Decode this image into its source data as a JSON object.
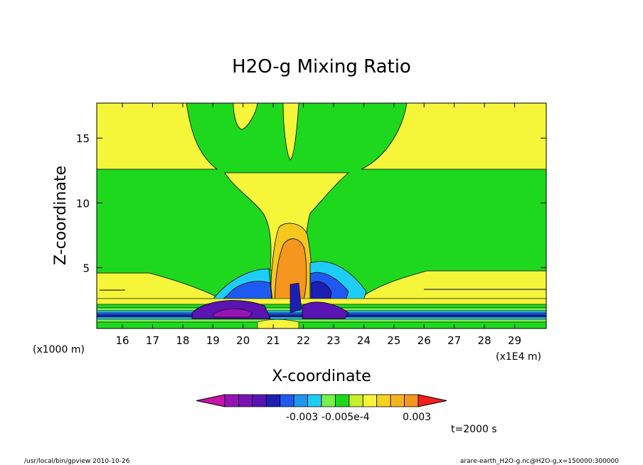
{
  "chart_data": {
    "type": "heatmap",
    "title": "H2O-g Mixing Ratio",
    "xlabel": "X-coordinate",
    "ylabel": "Z-coordinate",
    "x_multiplier_label": "(x1E4 m)",
    "y_multiplier_label": "(x1000 m)",
    "xlim": [
      15.15,
      30.05
    ],
    "ylim": [
      0.3,
      17.7
    ],
    "x_ticks": [
      16,
      17,
      18,
      19,
      20,
      21,
      22,
      23,
      24,
      25,
      26,
      27,
      28,
      29
    ],
    "y_ticks": [
      5,
      10,
      15
    ],
    "grid": false,
    "colors": {
      "yellow": "#f5f53a",
      "green": "#1ed81e",
      "lightgreen": "#78f04b",
      "cyan": "#1ecdf5",
      "blue": "#1e5af0",
      "darkblue": "#1e1eb4",
      "indigo": "#5a14b4",
      "purple": "#9614b4",
      "magenta": "#c814aa",
      "orange": "#f5961e",
      "red": "#f51e1e",
      "lightorange": "#f5c81e"
    },
    "colorbar": {
      "colors": [
        "#c814aa",
        "#9614b4",
        "#7814b4",
        "#5a14b4",
        "#1e1eb4",
        "#1e5af0",
        "#1e96f0",
        "#1ecdf5",
        "#78f04b",
        "#1ed81e",
        "#c8f028",
        "#f5f53a",
        "#f5d21e",
        "#f5b41e",
        "#f5961e",
        "#f51e1e"
      ],
      "labels": [
        "-0.003",
        "-0.005e-4",
        "0.003"
      ]
    },
    "annotation": "t=2000 s"
  },
  "footer": {
    "left": "/usr/local/bin/gpview  2010-10-26",
    "right": "arare-earth_H2O-g.nc@H2O-g,x=150000:300000"
  }
}
